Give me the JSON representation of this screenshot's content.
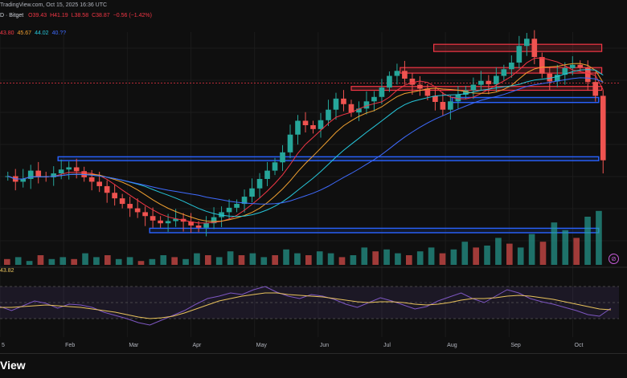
{
  "header": {
    "source": "TradingView.com, Oct 15, 2025 16:36 UTC",
    "symbol_tail": "D · Bitget",
    "ohlc": [
      {
        "text": "O39.43",
        "color": "red"
      },
      {
        "text": "H41.19",
        "color": "red"
      },
      {
        "text": "L38.58",
        "color": "red"
      },
      {
        "text": "C38.87",
        "color": "red"
      },
      {
        "text": "−0.56 (−1.42%)",
        "color": "red"
      }
    ],
    "ma_values": [
      {
        "text": "43.80",
        "color": "red"
      },
      {
        "text": "45.67",
        "color": "org"
      },
      {
        "text": "44.02",
        "color": "teal"
      },
      {
        "text": "40.??",
        "color": "blu"
      }
    ]
  },
  "rsi": {
    "label": "",
    "value": "43.82"
  },
  "footer": {
    "brand": "View"
  },
  "chart_data": {
    "type": "candlestick",
    "x_labels": [
      "5",
      "Feb",
      "Mar",
      "Apr",
      "May",
      "Jun",
      "Jul",
      "Aug",
      "Sep",
      "Oct"
    ],
    "price_ylim": [
      20,
      62
    ],
    "close_series": [
      36,
      35,
      35.5,
      37,
      36,
      35.8,
      36.5,
      37.2,
      37.6,
      36.9,
      35.8,
      35,
      34.2,
      33,
      32,
      31,
      30.2,
      29.5,
      28.8,
      28,
      27.5,
      27.9,
      28.3,
      27.8,
      27.1,
      26.7,
      27.5,
      28.6,
      29.5,
      30.3,
      31,
      32.3,
      33.8,
      35.5,
      37,
      38.5,
      40.3,
      43.5,
      46,
      45.2,
      44.5,
      46.1,
      48,
      50,
      49,
      47.5,
      48.2,
      49.5,
      50.3,
      52,
      54.1,
      55,
      53.6,
      52.5,
      51.8,
      50.5,
      49.4,
      48,
      49.5,
      50.7,
      51.5,
      52.5,
      53.2,
      52.6,
      54.1,
      55.3,
      56.5,
      59.5,
      60.8,
      57.5,
      54.5,
      53.1,
      54.3,
      55.5,
      56.1,
      55.6,
      53,
      50.5,
      38.87
    ],
    "zones_resistance": [
      [
        58.5,
        59.8
      ],
      [
        54.6,
        55.6
      ],
      [
        51.5,
        52.2
      ]
    ],
    "zones_support": [
      [
        49.3,
        50.2
      ],
      [
        38.8,
        39.5
      ],
      [
        25.8,
        26.6
      ]
    ],
    "rsi_ylim": [
      15,
      85
    ],
    "rsi_series": [
      45,
      40,
      46,
      52,
      49,
      43,
      48,
      47,
      44,
      38,
      34,
      30,
      25,
      22,
      28,
      34,
      40,
      48,
      55,
      58,
      62,
      60,
      66,
      70,
      63,
      58,
      55,
      60,
      58,
      54,
      48,
      44,
      50,
      56,
      52,
      47,
      42,
      45,
      52,
      57,
      62,
      55,
      50,
      58,
      66,
      62,
      55,
      51,
      48,
      44,
      40,
      35,
      33,
      43
    ],
    "rsi_ma_series": [
      44,
      44,
      45,
      46,
      47,
      46,
      45,
      44,
      42,
      40,
      38,
      35,
      32,
      30,
      31,
      33,
      37,
      42,
      47,
      52,
      55,
      58,
      60,
      62,
      62,
      60,
      59,
      58,
      57,
      55,
      53,
      51,
      50,
      51,
      51,
      50,
      48,
      47,
      48,
      50,
      53,
      55,
      55,
      56,
      58,
      59,
      58,
      56,
      54,
      51,
      48,
      45,
      42,
      41
    ],
    "volume": [
      3,
      4,
      2,
      5,
      3,
      4,
      3,
      6,
      4,
      5,
      3,
      4,
      2,
      3,
      5,
      4,
      3,
      6,
      5,
      4,
      7,
      5,
      6,
      4,
      5,
      8,
      6,
      5,
      7,
      6,
      4,
      5,
      9,
      7,
      8,
      6,
      5,
      7,
      9,
      6,
      8,
      12,
      9,
      10,
      14,
      11,
      9,
      16,
      12,
      22,
      18,
      14,
      25,
      28
    ]
  }
}
